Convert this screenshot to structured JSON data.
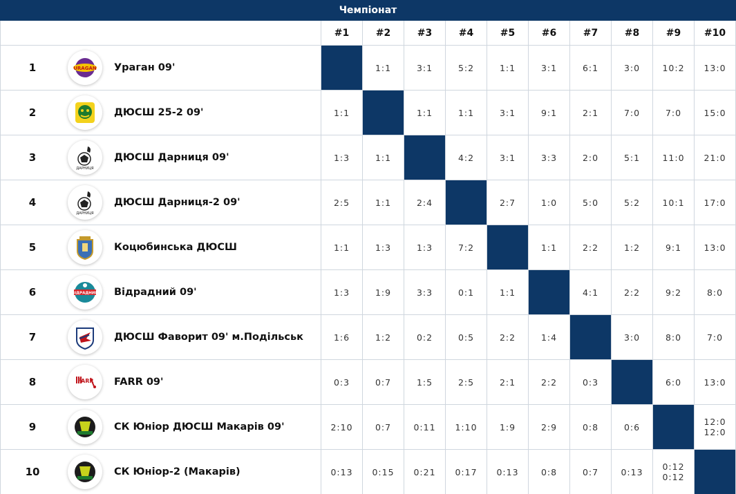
{
  "title": "Чемпіонат",
  "columns": [
    "#1",
    "#2",
    "#3",
    "#4",
    "#5",
    "#6",
    "#7",
    "#8",
    "#9",
    "#10"
  ],
  "colors": {
    "header_bg": "#0d3766",
    "diagonal": "#0d3766",
    "grid": "#cfd6de"
  },
  "rows": [
    {
      "rank": "1",
      "team": "Ураган 09'",
      "logo": "uragan-logo-icon",
      "results": [
        "",
        "1:1",
        "3:1",
        "5:2",
        "1:1",
        "3:1",
        "6:1",
        "3:0",
        "10:2",
        "13:0"
      ]
    },
    {
      "rank": "2",
      "team": "ДЮСШ 25-2 09'",
      "logo": "dyussh-25-2-logo-icon",
      "results": [
        "1:1",
        "",
        "1:1",
        "1:1",
        "3:1",
        "9:1",
        "2:1",
        "7:0",
        "7:0",
        "15:0"
      ]
    },
    {
      "rank": "3",
      "team": "ДЮСШ Дарниця 09'",
      "logo": "darnytsia-logo-icon",
      "results": [
        "1:3",
        "1:1",
        "",
        "4:2",
        "3:1",
        "3:3",
        "2:0",
        "5:1",
        "11:0",
        "21:0"
      ]
    },
    {
      "rank": "4",
      "team": "ДЮСШ Дарниця-2 09'",
      "logo": "darnytsia-2-logo-icon",
      "results": [
        "2:5",
        "1:1",
        "2:4",
        "",
        "2:7",
        "1:0",
        "5:0",
        "5:2",
        "10:1",
        "17:0"
      ]
    },
    {
      "rank": "5",
      "team": "Коцюбинська ДЮСШ",
      "logo": "kotsiubynska-logo-icon",
      "results": [
        "1:1",
        "1:3",
        "1:3",
        "7:2",
        "",
        "1:1",
        "2:2",
        "1:2",
        "9:1",
        "13:0"
      ]
    },
    {
      "rank": "6",
      "team": "Відрадний 09'",
      "logo": "vidradnyi-logo-icon",
      "results": [
        "1:3",
        "1:9",
        "3:3",
        "0:1",
        "1:1",
        "",
        "4:1",
        "2:2",
        "9:2",
        "8:0"
      ]
    },
    {
      "rank": "7",
      "team": "ДЮСШ Фаворит 09' м.Подільськ",
      "logo": "favoryt-logo-icon",
      "results": [
        "1:6",
        "1:2",
        "0:2",
        "0:5",
        "2:2",
        "1:4",
        "",
        "3:0",
        "8:0",
        "7:0"
      ]
    },
    {
      "rank": "8",
      "team": "FARR 09'",
      "logo": "farr-logo-icon",
      "results": [
        "0:3",
        "0:7",
        "1:5",
        "2:5",
        "2:1",
        "2:2",
        "0:3",
        "",
        "6:0",
        "13:0"
      ]
    },
    {
      "rank": "9",
      "team": "СК Юніор ДЮСШ Макарів 09'",
      "logo": "junior-logo-icon",
      "results": [
        "2:10",
        "0:7",
        "0:11",
        "1:10",
        "1:9",
        "2:9",
        "0:8",
        "0:6",
        "",
        "12:0\n12:0"
      ]
    },
    {
      "rank": "10",
      "team": "СК Юніор-2 (Макарів)",
      "logo": "junior-2-logo-icon",
      "results": [
        "0:13",
        "0:15",
        "0:21",
        "0:17",
        "0:13",
        "0:8",
        "0:7",
        "0:13",
        "0:12\n0:12",
        ""
      ]
    }
  ]
}
